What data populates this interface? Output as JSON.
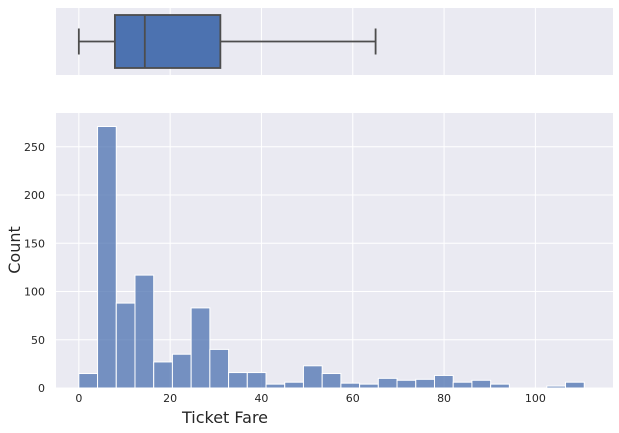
{
  "chart_data": [
    {
      "type": "box",
      "orientation": "horizontal",
      "variable": "Ticket Fare",
      "whisker_low": 0,
      "q1": 7.9,
      "median": 14.45,
      "q3": 31.0,
      "whisker_high": 65,
      "xlim": [
        -5,
        117
      ],
      "grid": true,
      "color": "#4c72b0",
      "line_color": "#4d4d4d"
    },
    {
      "type": "histogram",
      "xlabel": "Ticket Fare",
      "ylabel": "Count",
      "xlim": [
        -5,
        117
      ],
      "ylim": [
        0,
        285
      ],
      "x_ticks": [
        "0",
        "20",
        "40",
        "60",
        "80",
        "100"
      ],
      "y_ticks": [
        "0",
        "50",
        "100",
        "150",
        "200",
        "250"
      ],
      "grid": true,
      "bin_width": 4.1,
      "bin_edges": [
        0,
        4.1,
        8.2,
        12.3,
        16.4,
        20.5,
        24.6,
        28.7,
        32.8,
        36.9,
        41.0,
        45.1,
        49.2,
        53.3,
        57.4,
        61.5,
        65.6,
        69.7,
        73.8,
        77.9,
        82.0,
        86.1,
        90.2,
        94.3,
        98.4,
        102.5,
        106.6,
        110.7
      ],
      "counts": [
        15,
        271,
        88,
        117,
        27,
        35,
        83,
        40,
        16,
        16,
        4,
        6,
        23,
        15,
        5,
        4,
        10,
        8,
        9,
        13,
        6,
        8,
        4,
        0,
        0,
        2,
        6
      ],
      "color": "#4c72b0"
    }
  ]
}
